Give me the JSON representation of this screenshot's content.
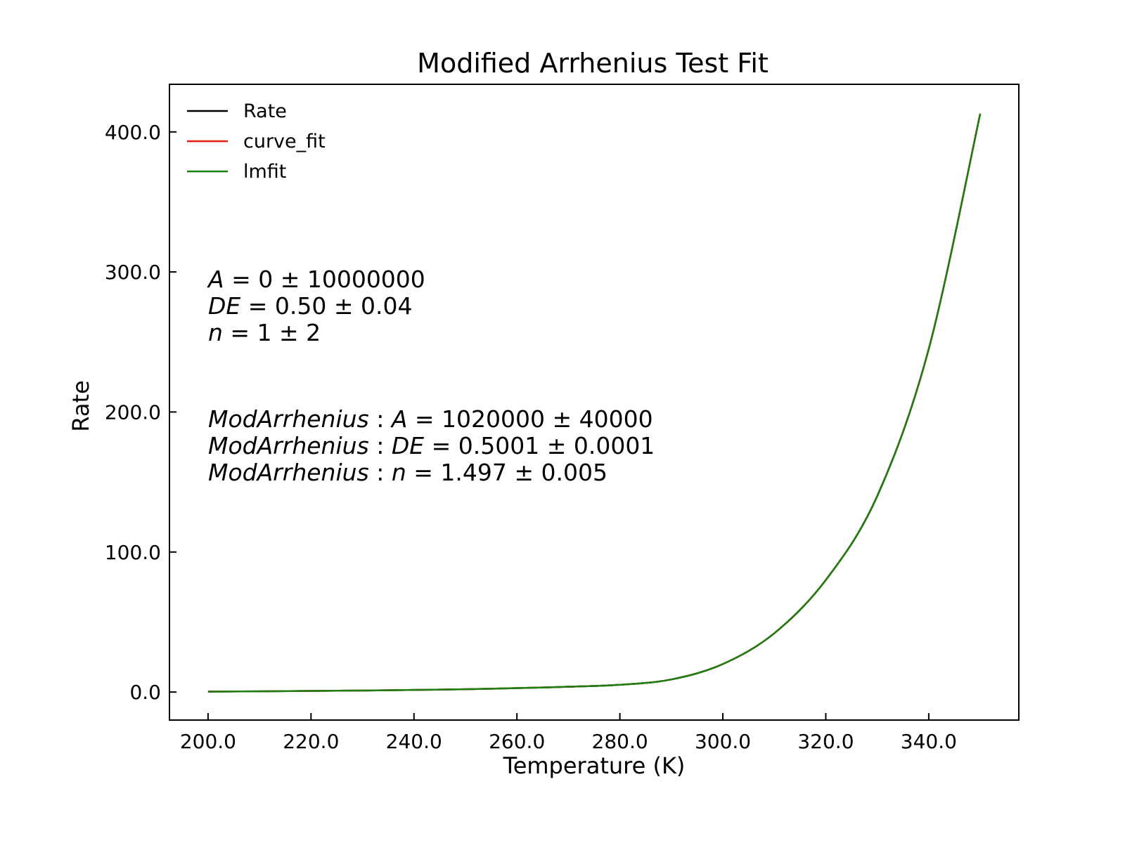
{
  "chart_data": {
    "type": "line",
    "title": "Modified Arrhenius Test Fit",
    "xlabel": "Temperature (K)",
    "ylabel": "Rate",
    "xlim": [
      192.5,
      357.5
    ],
    "ylim": [
      -20,
      434
    ],
    "xticks": [
      200,
      220,
      240,
      260,
      280,
      300,
      320,
      340
    ],
    "xtick_labels": [
      "200.0",
      "220.0",
      "240.0",
      "260.0",
      "280.0",
      "300.0",
      "320.0",
      "340.0"
    ],
    "yticks": [
      0,
      100,
      200,
      300,
      400
    ],
    "ytick_labels": [
      "0.0",
      "100.0",
      "200.0",
      "300.0",
      "400.0"
    ],
    "grid": false,
    "legend_position": "upper-left",
    "x": [
      200,
      210,
      220,
      230,
      240,
      250,
      260,
      270,
      280,
      290,
      300,
      310,
      320,
      330,
      340,
      350
    ],
    "series": [
      {
        "name": "Rate",
        "color": "#000000",
        "values": [
          0.3,
          0.5,
          0.8,
          1.1,
          1.5,
          2.0,
          2.8,
          3.8,
          5.2,
          9.0,
          20.0,
          42.0,
          80.0,
          140.0,
          245.0,
          413.0
        ]
      },
      {
        "name": "curve_fit",
        "color": "#e8180f",
        "values": [
          0.3,
          0.5,
          0.8,
          1.1,
          1.5,
          2.0,
          2.8,
          3.8,
          5.2,
          9.0,
          20.0,
          42.0,
          80.0,
          140.0,
          245.0,
          413.0
        ]
      },
      {
        "name": "lmfit",
        "color": "#1d7f12",
        "values": [
          0.3,
          0.5,
          0.8,
          1.1,
          1.5,
          2.0,
          2.8,
          3.8,
          5.2,
          9.0,
          20.0,
          42.0,
          80.0,
          140.0,
          245.0,
          413.0
        ]
      }
    ],
    "annotations": {
      "curve_fit_params": [
        {
          "sym": "A",
          "rest": " = 0 ± 10000000"
        },
        {
          "sym": "DE",
          "rest": " = 0.50 ± 0.04"
        },
        {
          "sym": "n",
          "rest": " = 1 ± 2"
        }
      ],
      "lmfit_params": [
        {
          "prefix": "ModArrhenius",
          "sym": "A",
          "rest": " = 1020000 ± 40000"
        },
        {
          "prefix": "ModArrhenius",
          "sym": "DE",
          "rest": " = 0.5001 ± 0.0001"
        },
        {
          "prefix": "ModArrhenius",
          "sym": "n",
          "rest": " = 1.497 ± 0.005"
        }
      ]
    }
  }
}
